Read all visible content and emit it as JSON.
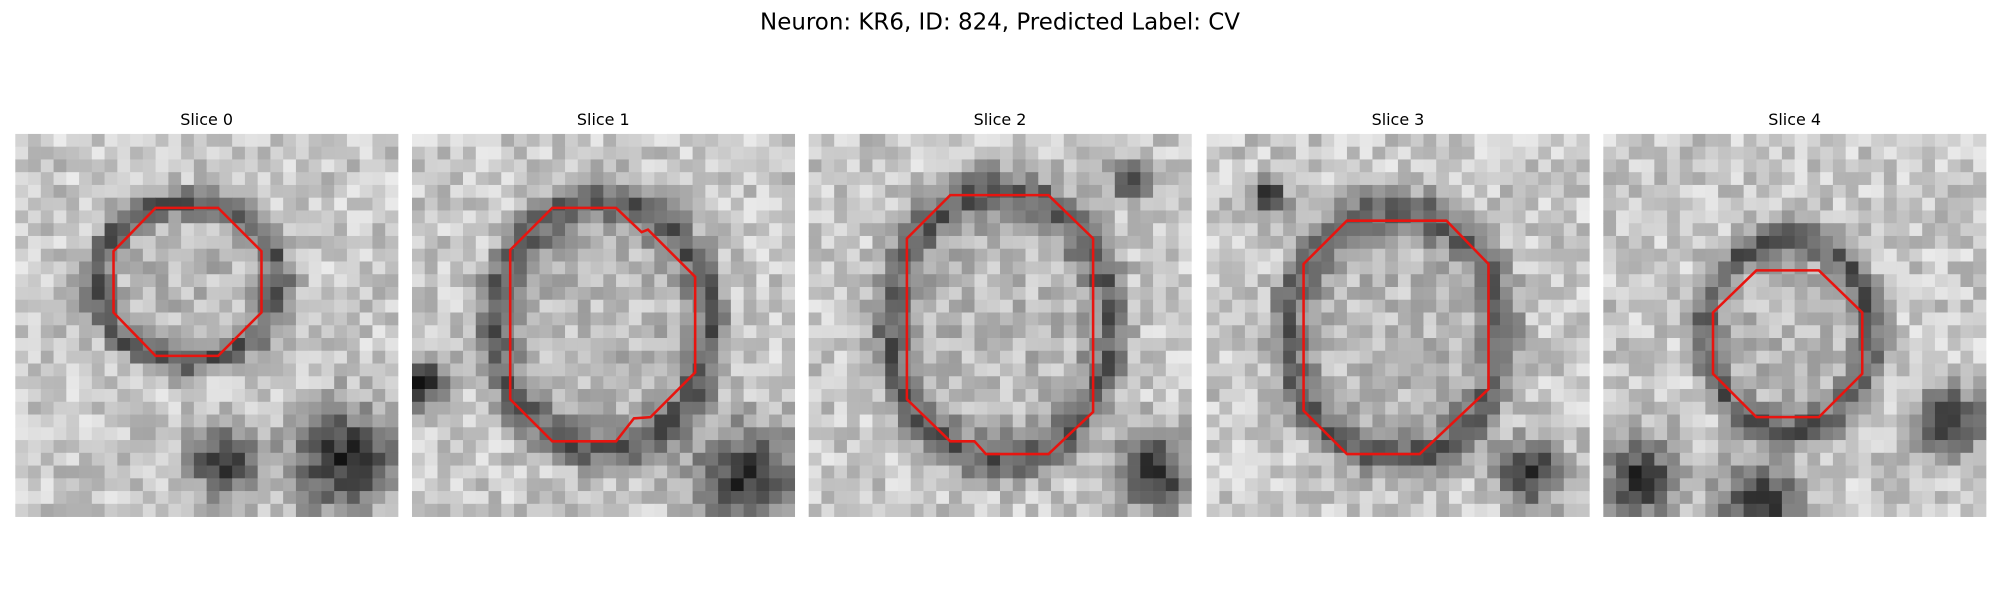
{
  "title": "Neuron: KR6, ID: 824, Predicted Label: CV",
  "panels": [
    {
      "title": "Slice 0"
    },
    {
      "title": "Slice 1"
    },
    {
      "title": "Slice 2"
    },
    {
      "title": "Slice 3"
    },
    {
      "title": "Slice 4"
    }
  ]
}
